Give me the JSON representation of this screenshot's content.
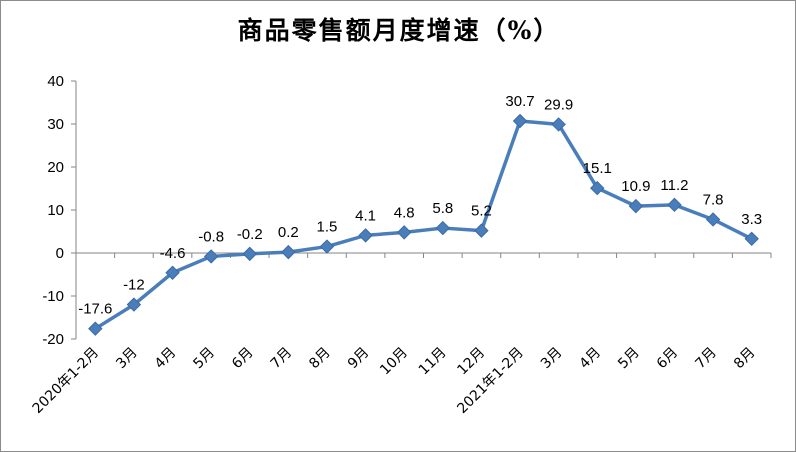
{
  "chart_data": {
    "type": "line",
    "title": "商品零售额月度增速（%）",
    "xlabel": "",
    "ylabel": "",
    "ylim": [
      -20,
      40
    ],
    "yticks": [
      -20,
      -10,
      0,
      10,
      20,
      30,
      40
    ],
    "grid": false,
    "legend": "none",
    "categories": [
      "2020年1-2月",
      "3月",
      "4月",
      "5月",
      "6月",
      "7月",
      "8月",
      "9月",
      "10月",
      "11月",
      "12月",
      "2021年1-2月",
      "3月",
      "4月",
      "5月",
      "6月",
      "7月",
      "8月"
    ],
    "series": [
      {
        "values": [
          -17.6,
          -12,
          -4.6,
          -0.8,
          -0.2,
          0.2,
          1.5,
          4.1,
          4.8,
          5.8,
          5.2,
          30.7,
          29.9,
          15.1,
          10.9,
          11.2,
          7.8,
          3.3
        ],
        "labels": [
          "-17.6",
          "-12",
          "-4.6",
          "-0.8",
          "-0.2",
          "0.2",
          "1.5",
          "4.1",
          "4.8",
          "5.8",
          "5.2",
          "30.7",
          "29.9",
          "15.1",
          "10.9",
          "11.2",
          "7.8",
          "3.3"
        ],
        "color": "#4a7ebb"
      }
    ]
  }
}
